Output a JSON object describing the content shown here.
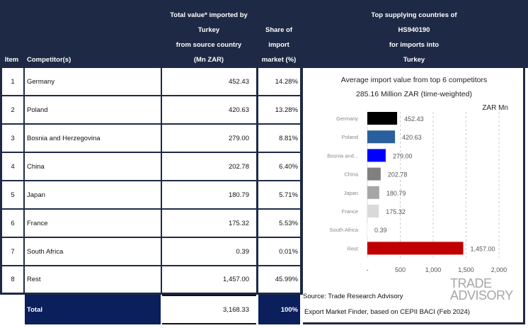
{
  "header": {
    "item": "Item",
    "competitor": "Competitor(s)",
    "value_lines": [
      "Total value* imported by",
      "Turkey",
      "from source country",
      "(Mn ZAR)"
    ],
    "share_lines": [
      "Share of",
      "import",
      "market (%)"
    ],
    "top_lines": [
      "Top supplying countries of",
      "HS940190",
      "for imports into",
      "Turkey"
    ]
  },
  "rows": [
    {
      "item": "1",
      "name": "Germany",
      "value": "452.43",
      "share": "14.28%"
    },
    {
      "item": "2",
      "name": "Poland",
      "value": "420.63",
      "share": "13.28%"
    },
    {
      "item": "3",
      "name": "Bosnia and Herzegovina",
      "value": "279.00",
      "share": "8.81%"
    },
    {
      "item": "4",
      "name": "China",
      "value": "202.78",
      "share": "6.40%"
    },
    {
      "item": "5",
      "name": "Japan",
      "value": "180.79",
      "share": "5.71%"
    },
    {
      "item": "6",
      "name": "France",
      "value": "175.32",
      "share": "5.53%"
    },
    {
      "item": "7",
      "name": "South Africa",
      "value": "0.39",
      "share": "0.01%"
    },
    {
      "item": "8",
      "name": "Rest",
      "value": "1,457.00",
      "share": "45.99%"
    }
  ],
  "total": {
    "label": "Total",
    "value": "3,168.33",
    "share": "100%"
  },
  "chart_data": {
    "type": "bar",
    "title": "Average import value from top 6 competitors",
    "subtitle": "285.16 Million ZAR (time-weighted)",
    "unit_label": "ZAR Mn",
    "categories": [
      "Germany",
      "Poland",
      "Bosnia and...",
      "China",
      "Japan",
      "France",
      "South Africa",
      "Rest"
    ],
    "values": [
      452.43,
      420.63,
      279.0,
      202.78,
      180.79,
      175.32,
      0.39,
      1457.0
    ],
    "value_labels": [
      "452.43",
      "420.63",
      "279.00",
      "202.78",
      "180.79",
      "175.32",
      "0.39",
      "1,457.00"
    ],
    "colors": [
      "#000000",
      "#2a5f9e",
      "#0000ff",
      "#808080",
      "#a6a6a6",
      "#d9d9d9",
      "#ffffff",
      "#c00000"
    ],
    "xlim": [
      0,
      2000
    ],
    "xticks": [
      "-",
      "500",
      "1,000",
      "1,500",
      "2,000"
    ],
    "grid": true
  },
  "source": "Source: Trade Research Advisory",
  "source2": "Export Market Finder, based on CEPII BACI (Feb 2024)",
  "logo": {
    "line1": "TRADE",
    "line2": "ADVISORY"
  }
}
